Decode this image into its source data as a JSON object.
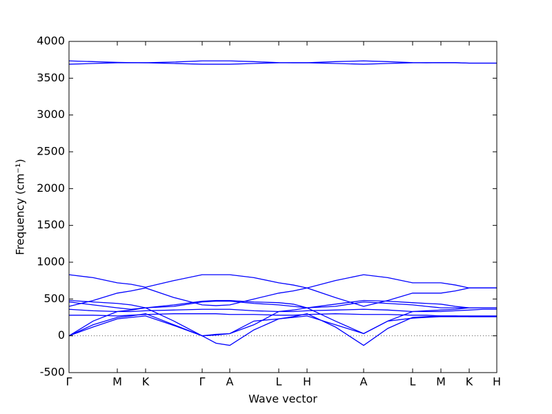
{
  "chart_data": {
    "type": "line",
    "xlabel": "Wave vector",
    "ylabel": "Frequency (cm⁻¹)",
    "x": [
      0,
      0.35,
      0.7,
      0.9,
      1.11,
      1.52,
      1.93,
      2.13,
      2.33,
      2.68,
      3.04,
      3.25,
      3.45,
      3.86,
      4.27,
      4.62,
      4.98,
      5.18,
      5.39,
      5.6,
      5.8,
      6.0,
      6.2
    ],
    "xlim": [
      0,
      6.2
    ],
    "xticks": [
      {
        "value": 0,
        "label": "Γ"
      },
      {
        "value": 0.7,
        "label": "M"
      },
      {
        "value": 1.11,
        "label": "K"
      },
      {
        "value": 1.93,
        "label": "Γ"
      },
      {
        "value": 2.33,
        "label": "A"
      },
      {
        "value": 3.04,
        "label": "L"
      },
      {
        "value": 3.45,
        "label": "H"
      },
      {
        "value": 4.27,
        "label": "A"
      },
      {
        "value": 4.98,
        "label": "L"
      },
      {
        "value": 5.39,
        "label": "M"
      },
      {
        "value": 5.8,
        "label": "K"
      },
      {
        "value": 6.2,
        "label": "H"
      }
    ],
    "ylim": [
      -500,
      4000
    ],
    "yticks": [
      -500,
      0,
      500,
      1000,
      1500,
      2000,
      2500,
      3000,
      3500,
      4000
    ],
    "hline": 0,
    "series": [
      {
        "color": "#0000ff",
        "values": [
          3735,
          3725,
          3715,
          3712,
          3710,
          3720,
          3735,
          3735,
          3735,
          3725,
          3712,
          3710,
          3710,
          3725,
          3735,
          3725,
          3712,
          3710,
          3712,
          3712,
          3705,
          3705,
          3705
        ]
      },
      {
        "color": "#0000ff",
        "values": [
          3690,
          3700,
          3710,
          3710,
          3710,
          3700,
          3690,
          3690,
          3690,
          3700,
          3710,
          3710,
          3710,
          3700,
          3690,
          3700,
          3710,
          3710,
          3710,
          3710,
          3705,
          3705,
          3705
        ]
      },
      {
        "color": "#0000ff",
        "values": [
          830,
          790,
          720,
          700,
          660,
          750,
          830,
          830,
          830,
          790,
          720,
          690,
          650,
          750,
          830,
          790,
          720,
          720,
          720,
          690,
          650,
          650,
          650
        ]
      },
      {
        "color": "#0000ff",
        "values": [
          400,
          480,
          580,
          610,
          650,
          520,
          420,
          410,
          420,
          500,
          580,
          610,
          650,
          520,
          400,
          480,
          580,
          580,
          580,
          610,
          650,
          650,
          650
        ]
      },
      {
        "color": "#0000ff",
        "values": [
          480,
          460,
          440,
          420,
          380,
          420,
          470,
          480,
          480,
          460,
          450,
          430,
          380,
          430,
          480,
          470,
          450,
          440,
          430,
          400,
          380,
          380,
          380
        ]
      },
      {
        "color": "#0000ff",
        "values": [
          460,
          420,
          380,
          360,
          380,
          400,
          460,
          470,
          470,
          440,
          420,
          400,
          380,
          400,
          460,
          440,
          420,
          400,
          380,
          380,
          380,
          380,
          380
        ]
      },
      {
        "color": "#0000ff",
        "values": [
          360,
          340,
          330,
          330,
          340,
          350,
          360,
          360,
          360,
          340,
          330,
          330,
          340,
          350,
          360,
          350,
          330,
          330,
          330,
          340,
          350,
          360,
          360
        ]
      },
      {
        "color": "#0000ff",
        "values": [
          280,
          280,
          270,
          280,
          290,
          300,
          300,
          300,
          290,
          290,
          280,
          280,
          290,
          300,
          290,
          290,
          280,
          280,
          270,
          270,
          270,
          270,
          270
        ]
      },
      {
        "color": "#0000ff",
        "values": [
          0,
          120,
          230,
          250,
          270,
          140,
          0,
          20,
          30,
          200,
          230,
          250,
          270,
          150,
          30,
          200,
          240,
          250,
          260,
          260,
          260,
          260,
          260
        ]
      },
      {
        "color": "#0000ff",
        "values": [
          0,
          150,
          250,
          270,
          300,
          150,
          0,
          -100,
          -130,
          80,
          230,
          260,
          300,
          120,
          -130,
          100,
          250,
          260,
          270,
          270,
          260,
          260,
          260
        ]
      },
      {
        "color": "#0000ff",
        "values": [
          0,
          200,
          330,
          350,
          380,
          200,
          0,
          10,
          30,
          150,
          330,
          350,
          380,
          200,
          30,
          200,
          330,
          340,
          350,
          360,
          380,
          380,
          380
        ]
      }
    ]
  }
}
